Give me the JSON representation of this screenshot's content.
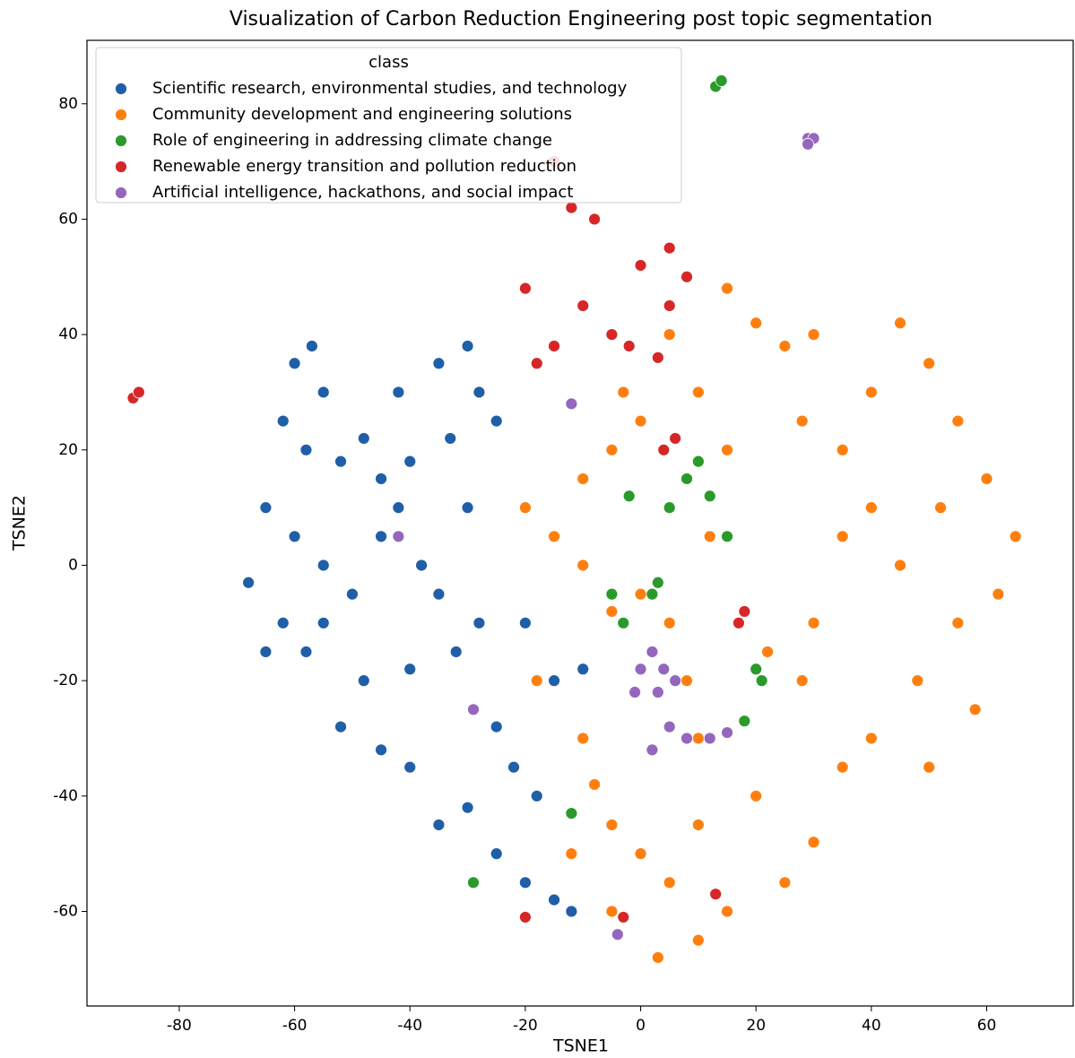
{
  "chart_data": {
    "type": "scatter",
    "title": "Visualization of Carbon Reduction Engineering post topic segmentation",
    "xlabel": "TSNE1",
    "ylabel": "TSNE2",
    "xlim": [
      -96,
      75
    ],
    "ylim": [
      -76.4,
      91
    ],
    "xticks": [
      -80,
      -60,
      -40,
      -20,
      0,
      20,
      40,
      60
    ],
    "yticks": [
      -60,
      -40,
      -20,
      0,
      20,
      40,
      60,
      80
    ],
    "grid": false,
    "legend_title": "class",
    "legend": "upper left",
    "series": [
      {
        "name": "Scientific research, environmental studies, and technology",
        "color": "#1f5fa8",
        "x": [
          -60,
          -57,
          -55,
          -62,
          -58,
          -52,
          -48,
          -45,
          -42,
          -40,
          -35,
          -30,
          -28,
          -25,
          -33,
          -65,
          -60,
          -55,
          -68,
          -62,
          -58,
          -50,
          -45,
          -42,
          -38,
          -35,
          -30,
          -28,
          -32,
          -40,
          -48,
          -52,
          -45,
          -40,
          -35,
          -30,
          -25,
          -20,
          -15,
          -12,
          -22,
          -18,
          -25,
          -65,
          -55,
          -20,
          -15,
          -10
        ],
        "values": [
          35,
          38,
          30,
          25,
          20,
          18,
          22,
          15,
          30,
          18,
          35,
          38,
          30,
          25,
          22,
          10,
          5,
          0,
          -3,
          -10,
          -15,
          -5,
          5,
          10,
          0,
          -5,
          10,
          -10,
          -15,
          -18,
          -20,
          -28,
          -32,
          -35,
          -45,
          -42,
          -50,
          -55,
          -58,
          -60,
          -35,
          -40,
          -28,
          -15,
          -10,
          -10,
          -20,
          -18
        ]
      },
      {
        "name": "Community development and engineering solutions",
        "color": "#ff7f0e",
        "x": [
          -20,
          -15,
          -10,
          -5,
          -18,
          -10,
          -8,
          -5,
          0,
          5,
          10,
          3,
          15,
          25,
          30,
          20,
          10,
          8,
          5,
          0,
          12,
          15,
          10,
          5,
          15,
          20,
          25,
          30,
          28,
          35,
          40,
          45,
          50,
          55,
          60,
          65,
          62,
          55,
          48,
          40,
          50,
          58,
          45,
          35,
          30,
          22,
          35,
          28,
          40,
          52,
          -5,
          0,
          -10,
          -12,
          -5,
          10,
          -3
        ],
        "values": [
          10,
          5,
          0,
          -8,
          -20,
          -30,
          -38,
          -45,
          -50,
          -55,
          -65,
          -68,
          -60,
          -55,
          -48,
          -40,
          -30,
          -20,
          -10,
          -5,
          5,
          20,
          30,
          40,
          48,
          42,
          38,
          40,
          25,
          20,
          30,
          42,
          35,
          25,
          15,
          5,
          -5,
          -10,
          -20,
          -30,
          -35,
          -25,
          0,
          5,
          -10,
          -15,
          -35,
          -20,
          10,
          10,
          20,
          25,
          15,
          -50,
          -60,
          -45,
          30
        ]
      },
      {
        "name": "Role of engineering in addressing climate change",
        "color": "#2a9a2a",
        "x": [
          13,
          14,
          8,
          12,
          15,
          10,
          5,
          -5,
          -3,
          2,
          3,
          20,
          21,
          18,
          -12,
          -29,
          -2
        ],
        "values": [
          83,
          84,
          15,
          12,
          5,
          18,
          10,
          -5,
          -10,
          -5,
          -3,
          -18,
          -20,
          -27,
          -43,
          -55,
          12
        ]
      },
      {
        "name": "Renewable energy transition and pollution reduction",
        "color": "#d62728",
        "x": [
          -88,
          -87,
          -15,
          -12,
          -8,
          -20,
          -10,
          0,
          5,
          -5,
          -15,
          -18,
          5,
          3,
          -2,
          8,
          4,
          6,
          18,
          17,
          -3,
          -20,
          13
        ],
        "values": [
          29,
          30,
          70,
          62,
          60,
          48,
          45,
          52,
          55,
          40,
          38,
          35,
          45,
          36,
          38,
          50,
          20,
          22,
          -8,
          -10,
          -61,
          -61,
          -57
        ]
      },
      {
        "name": "Artificial intelligence, hackathons, and social impact",
        "color": "#9467bd",
        "x": [
          29,
          30,
          29,
          2,
          4,
          6,
          3,
          0,
          5,
          8,
          12,
          15,
          2,
          -42,
          -29,
          -12,
          -4,
          -1
        ],
        "values": [
          74,
          74,
          73,
          -15,
          -18,
          -20,
          -22,
          -18,
          -28,
          -30,
          -30,
          -29,
          -32,
          5,
          -25,
          28,
          -64,
          -22
        ]
      }
    ]
  }
}
